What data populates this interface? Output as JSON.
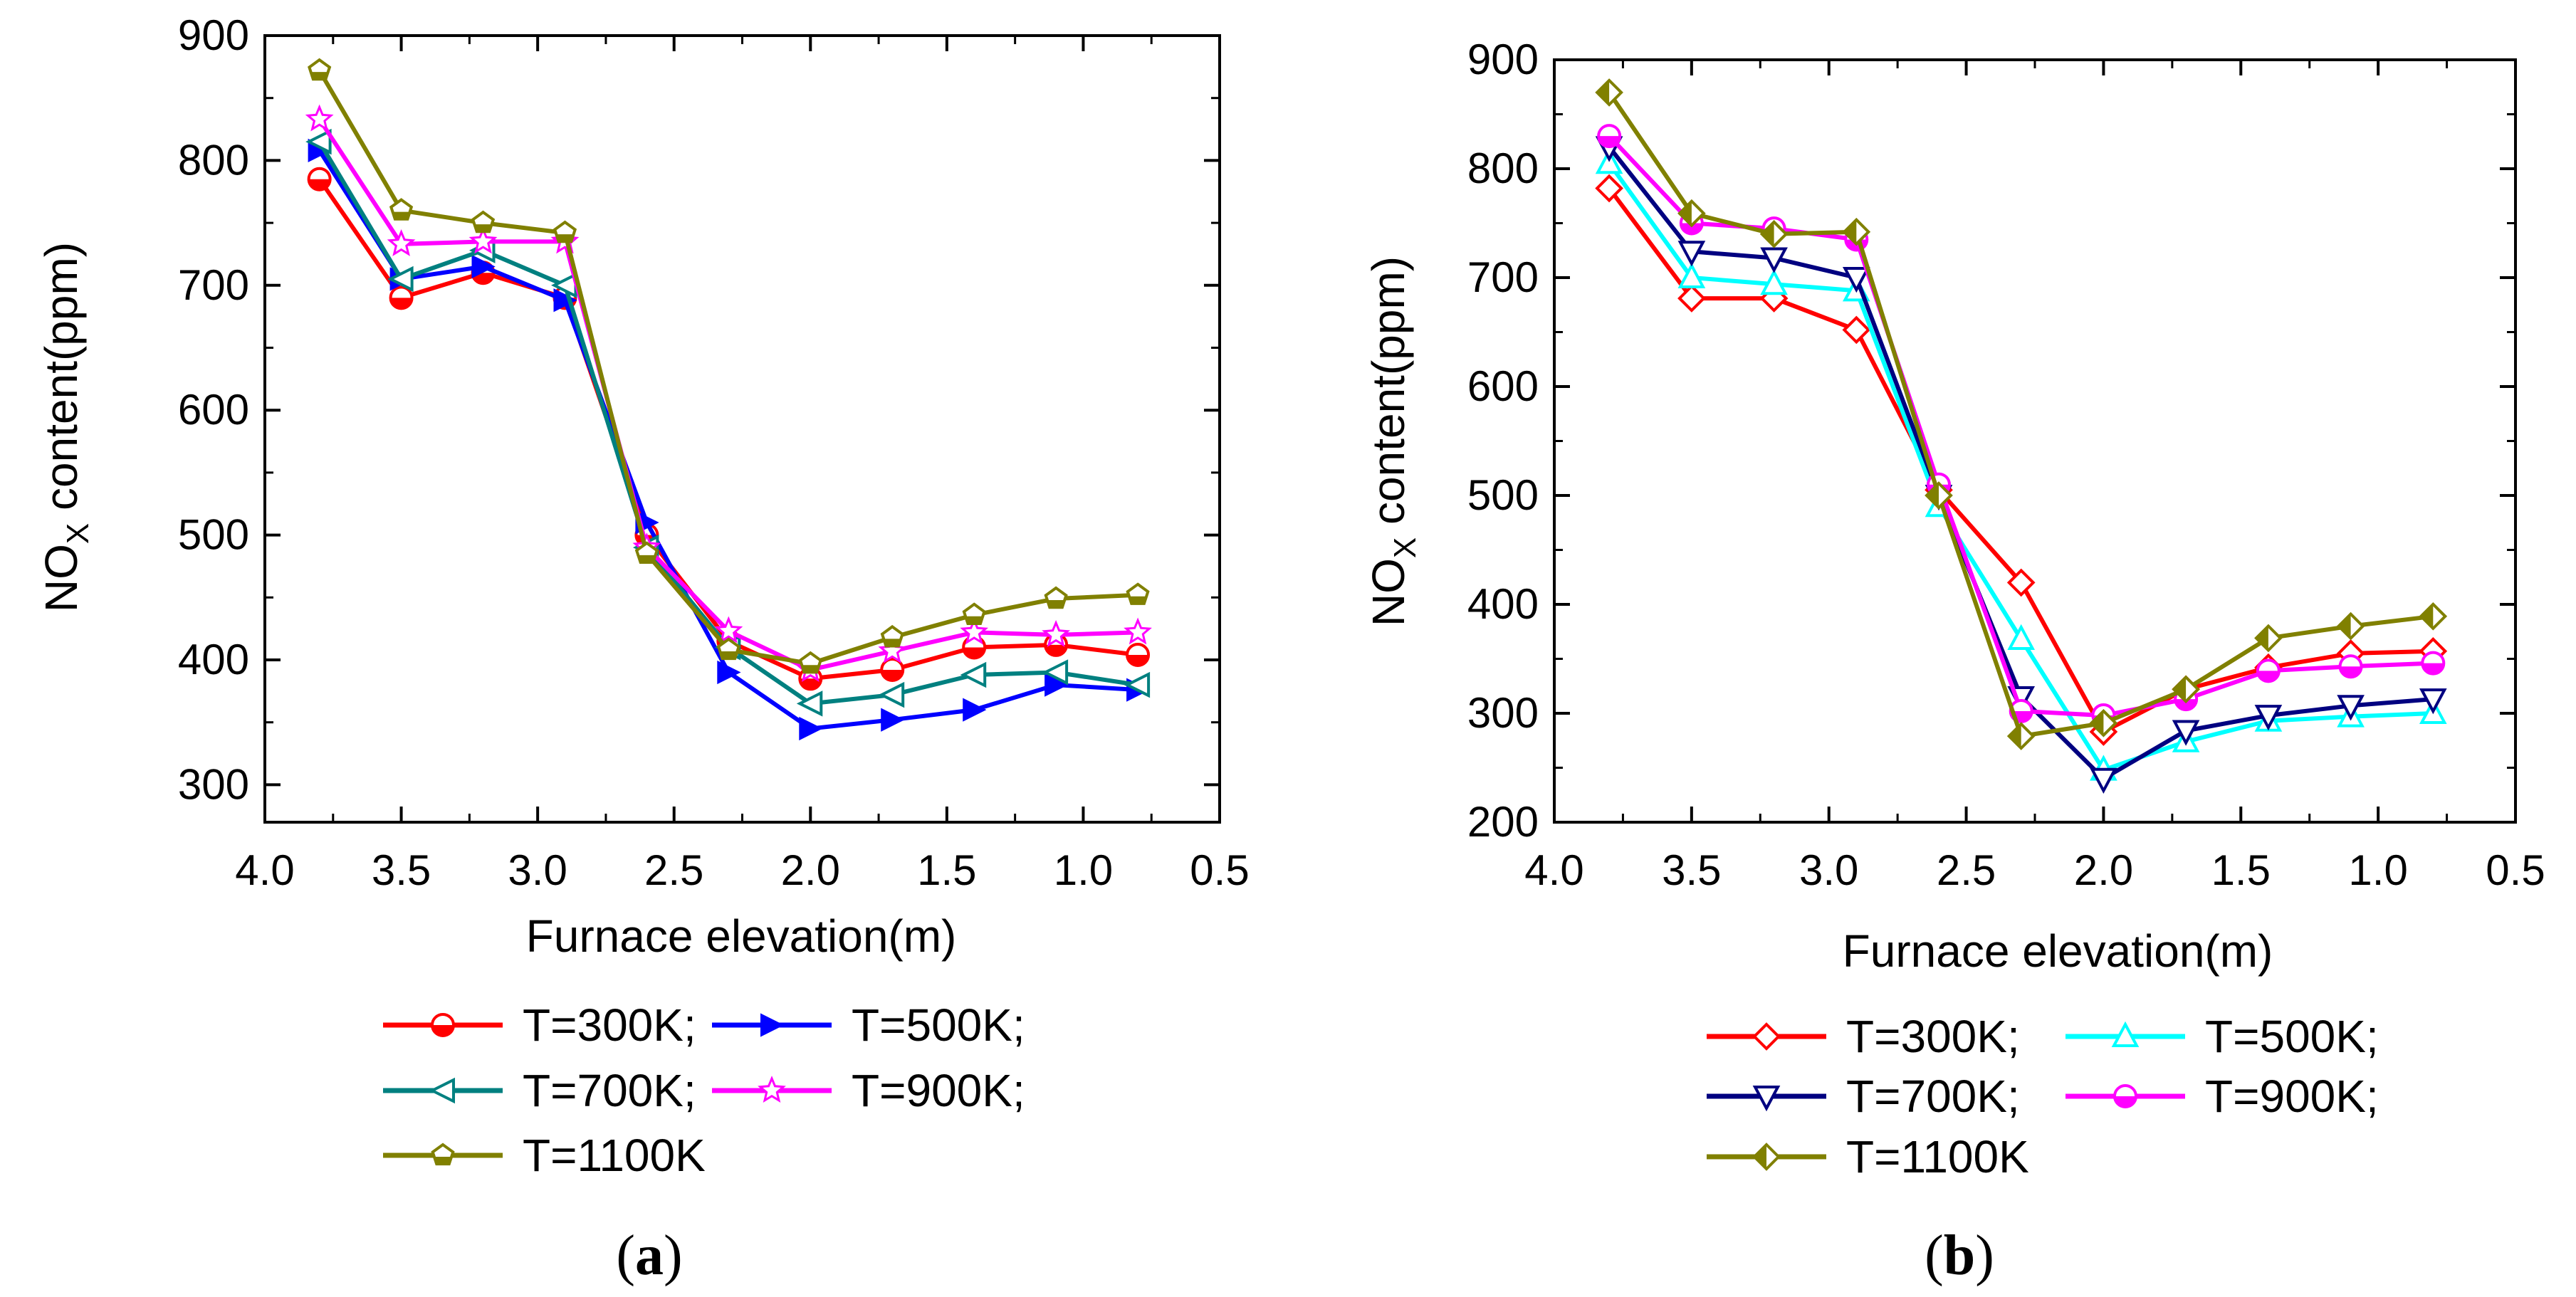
{
  "chart_data": [
    {
      "type": "line",
      "id": "a",
      "caption_letter": "a",
      "xlabel": "Furnace elevation(m)",
      "ylabel_main": "NO",
      "ylabel_sub": "X",
      "ylabel_rest": " content(ppm)",
      "xlim": [
        4.0,
        0.5
      ],
      "ylim": [
        270,
        900
      ],
      "xticks": [
        4.0,
        3.5,
        3.0,
        2.5,
        2.0,
        1.5,
        1.0,
        0.5
      ],
      "xtick_labels": [
        "4.0",
        "3.5",
        "3.0",
        "2.5",
        "2.0",
        "1.5",
        "1.0",
        "0.5"
      ],
      "yticks": [
        300,
        400,
        500,
        600,
        700,
        800,
        900
      ],
      "ytick_labels": [
        "300",
        "400",
        "500",
        "600",
        "700",
        "800",
        "900"
      ],
      "x": [
        3.8,
        3.5,
        3.2,
        2.9,
        2.6,
        2.3,
        2.0,
        1.7,
        1.4,
        1.1,
        0.8
      ],
      "series": [
        {
          "name": "T=300K;",
          "color": "#ff0000",
          "marker": "circle-half",
          "values": [
            785,
            690,
            710,
            690,
            500,
            415,
            385,
            392,
            410,
            412,
            404
          ]
        },
        {
          "name": "T=500K;",
          "color": "#0000ff",
          "marker": "tri-right",
          "values": [
            808,
            705,
            715,
            688,
            510,
            390,
            345,
            352,
            360,
            380,
            376
          ]
        },
        {
          "name": "T=700K;",
          "color": "#008080",
          "marker": "tri-left",
          "values": [
            815,
            705,
            728,
            700,
            490,
            410,
            365,
            372,
            388,
            390,
            380
          ]
        },
        {
          "name": "T=900K;",
          "color": "#ff00ff",
          "marker": "star",
          "values": [
            833,
            733,
            735,
            735,
            490,
            423,
            392,
            407,
            422,
            420,
            422
          ]
        },
        {
          "name": "T=1100K",
          "color": "#808000",
          "marker": "pentagon-half",
          "values": [
            872,
            760,
            750,
            742,
            485,
            408,
            397,
            418,
            436,
            449,
            452
          ]
        }
      ]
    },
    {
      "type": "line",
      "id": "b",
      "caption_letter": "b",
      "xlabel": "Furnace elevation(m)",
      "ylabel_main": "NO",
      "ylabel_sub": "X",
      "ylabel_rest": " content(ppm)",
      "xlim": [
        4.0,
        0.5
      ],
      "ylim": [
        200,
        900
      ],
      "xticks": [
        4.0,
        3.5,
        3.0,
        2.5,
        2.0,
        1.5,
        1.0,
        0.5
      ],
      "xtick_labels": [
        "4.0",
        "3.5",
        "3.0",
        "2.5",
        "2.0",
        "1.5",
        "1.0",
        "0.5"
      ],
      "yticks": [
        200,
        300,
        400,
        500,
        600,
        700,
        800,
        900
      ],
      "ytick_labels": [
        "200",
        "300",
        "400",
        "500",
        "600",
        "700",
        "800",
        "900"
      ],
      "x": [
        3.8,
        3.5,
        3.2,
        2.9,
        2.6,
        2.3,
        2.0,
        1.7,
        1.4,
        1.1,
        0.8
      ],
      "series": [
        {
          "name": "T=300K;",
          "color": "#ff0000",
          "marker": "diamond-open",
          "values": [
            782,
            681,
            681,
            652,
            505,
            420,
            283,
            322,
            342,
            355,
            357
          ]
        },
        {
          "name": "T=500K;",
          "color": "#00ffff",
          "marker": "tri-up-open",
          "values": [
            805,
            700,
            694,
            688,
            490,
            368,
            248,
            274,
            293,
            297,
            300
          ]
        },
        {
          "name": "T=700K;",
          "color": "#000080",
          "marker": "tri-down-open",
          "values": [
            820,
            724,
            718,
            700,
            500,
            315,
            240,
            284,
            298,
            307,
            313
          ]
        },
        {
          "name": "T=900K;",
          "color": "#ff00ff",
          "marker": "circle-half",
          "values": [
            830,
            750,
            745,
            735,
            510,
            302,
            298,
            313,
            339,
            343,
            346
          ]
        },
        {
          "name": "T=1100K",
          "color": "#808000",
          "marker": "diamond-half",
          "values": [
            870,
            759,
            740,
            742,
            500,
            279,
            291,
            322,
            369,
            380,
            389
          ]
        }
      ]
    }
  ]
}
